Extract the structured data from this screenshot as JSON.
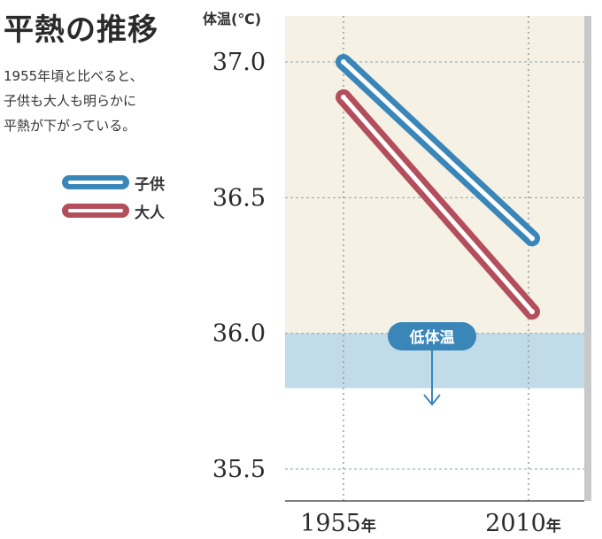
{
  "title": "平熱の推移",
  "description": [
    "1955年頃と比べると、",
    "子供も大人も明らかに",
    "平熱が下がっている。"
  ],
  "colors": {
    "child": "#3a86b8",
    "adult": "#b34f5d",
    "low_temp_band": "#b9d7ea",
    "plot_background": "#f5f1e4"
  },
  "chart_data": {
    "type": "line",
    "ylabel": "体温(℃)",
    "ylim": [
      35.35,
      37.2
    ],
    "yticks": [
      "37.0",
      "36.5",
      "36.0",
      "35.5"
    ],
    "ytick_values": [
      37.0,
      36.5,
      36.0,
      35.5
    ],
    "x": [
      "1955",
      "2010"
    ],
    "x_suffix": "年",
    "series": [
      {
        "name": "子供",
        "values": [
          37.0,
          36.35
        ]
      },
      {
        "name": "大人",
        "values": [
          36.87,
          36.08
        ]
      }
    ],
    "annotation": {
      "label": "低体温",
      "threshold": 36.0
    },
    "grid": true,
    "legend": "left"
  }
}
